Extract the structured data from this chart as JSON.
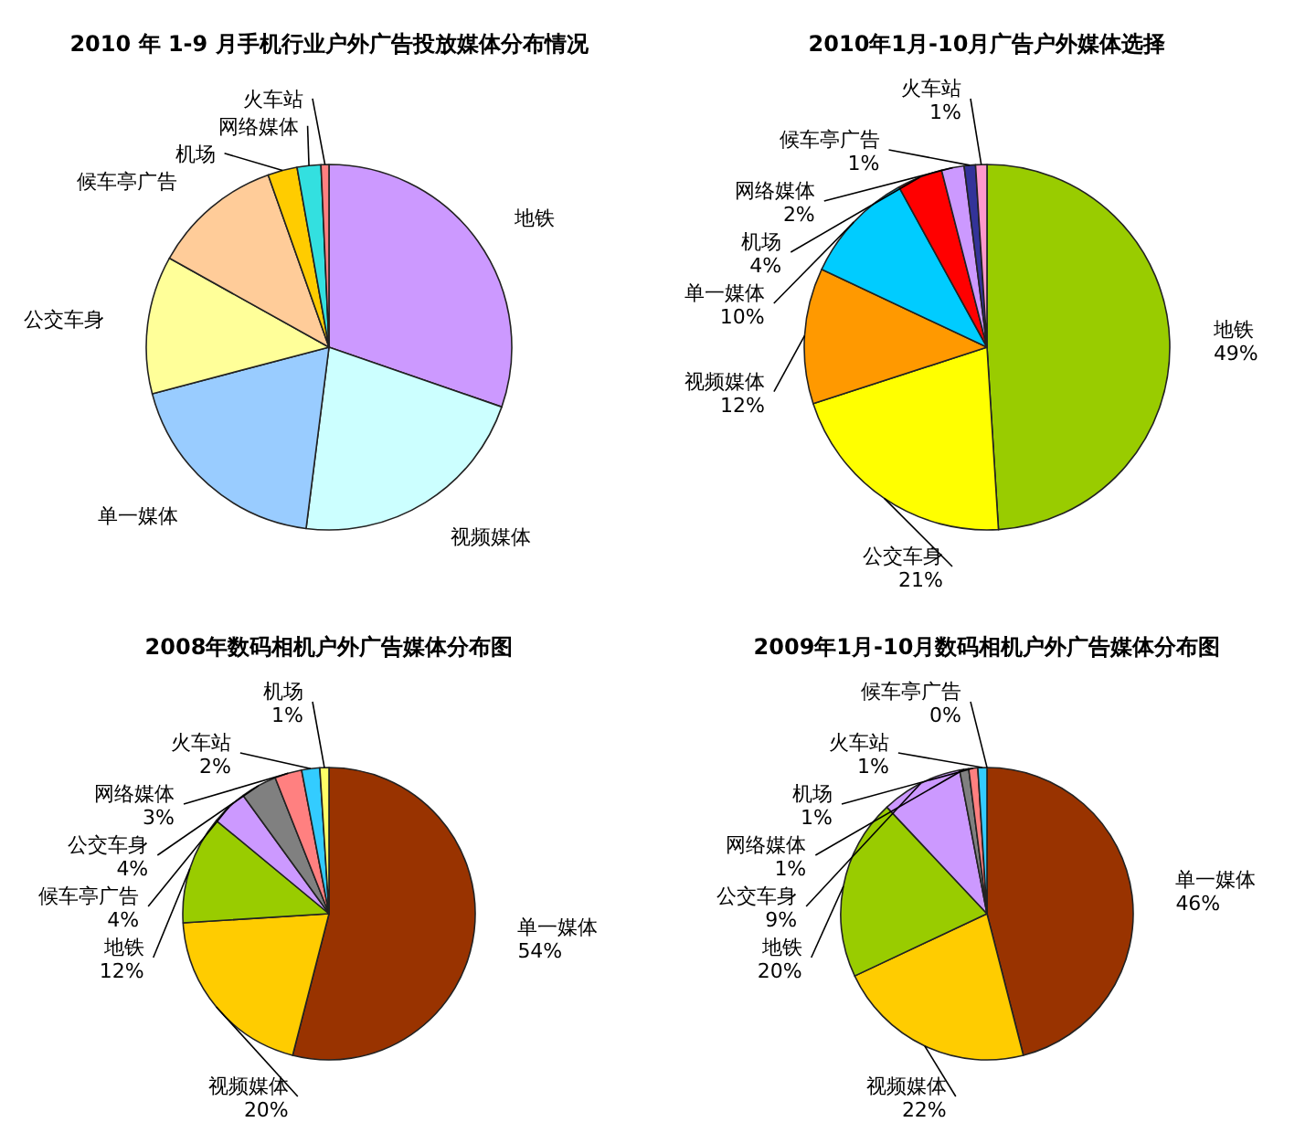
{
  "chart_data": [
    {
      "type": "pie",
      "title": "2010 年 1-9 月手机行业户外广告投放媒体分布情况",
      "categories": [
        "地铁",
        "视频媒体",
        "单一媒体",
        "公交车身",
        "候车亭广告",
        "机场",
        "网络媒体",
        "火车站"
      ],
      "values": [
        30.3,
        21.7,
        18.9,
        12.2,
        11.5,
        2.6,
        2.1,
        0.7
      ],
      "colors": [
        "#cc99ff",
        "#ccffff",
        "#99ccff",
        "#ffff99",
        "#ffcc99",
        "#ffcc00",
        "#33e0e0",
        "#ff8080"
      ]
    },
    {
      "type": "pie",
      "title": "2010年1月-10月广告户外媒体选择",
      "categories": [
        "地铁",
        "公交车身",
        "视频媒体",
        "单一媒体",
        "机场",
        "网络媒体",
        "候车亭广告",
        "火车站"
      ],
      "values": [
        49,
        21,
        12,
        10,
        4,
        2,
        1,
        1
      ],
      "value_labels": [
        "49%",
        "21%",
        "12%",
        "10%",
        "4%",
        "2%",
        "1%",
        "1%"
      ],
      "colors": [
        "#99cc00",
        "#ffff00",
        "#ff9900",
        "#00ccff",
        "#ff0000",
        "#cc99ff",
        "#333399",
        "#ff99cc"
      ]
    },
    {
      "type": "pie",
      "title": "2008年数码相机户外广告媒体分布图",
      "categories": [
        "单一媒体",
        "视频媒体",
        "地铁",
        "候车亭广告",
        "公交车身",
        "网络媒体",
        "火车站",
        "机场"
      ],
      "values": [
        54,
        20,
        12,
        4,
        4,
        3,
        2,
        1
      ],
      "value_labels": [
        "54%",
        "20%",
        "12%",
        "4%",
        "4%",
        "3%",
        "2%",
        "1%"
      ],
      "colors": [
        "#993300",
        "#ffcc00",
        "#99cc00",
        "#cc99ff",
        "#808080",
        "#ff8080",
        "#33ccff",
        "#ffff66"
      ]
    },
    {
      "type": "pie",
      "title": "2009年1月-10月数码相机户外广告媒体分布图",
      "categories": [
        "单一媒体",
        "视频媒体",
        "地铁",
        "公交车身",
        "网络媒体",
        "机场",
        "火车站",
        "候车亭广告"
      ],
      "values": [
        46,
        22,
        20,
        9,
        1,
        1,
        1,
        0
      ],
      "value_labels": [
        "46%",
        "22%",
        "20%",
        "9%",
        "1%",
        "1%",
        "1%",
        "0%"
      ],
      "colors": [
        "#993300",
        "#ffcc00",
        "#99cc00",
        "#cc99ff",
        "#808080",
        "#ff8080",
        "#33ccff",
        "#ffff66"
      ]
    }
  ]
}
